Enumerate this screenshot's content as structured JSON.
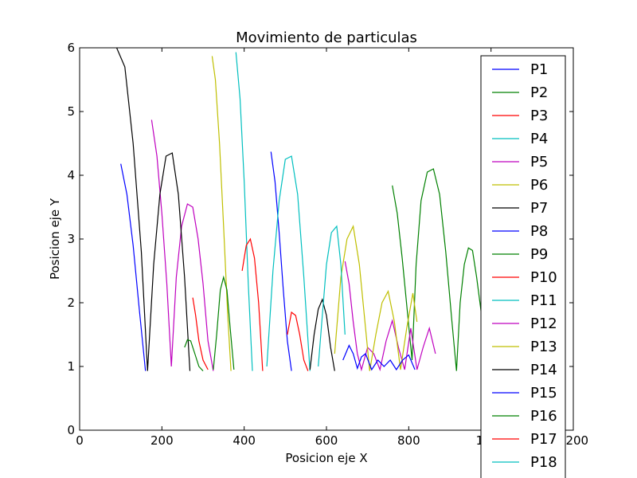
{
  "chart_data": {
    "type": "line",
    "title": "Movimiento de particulas",
    "xlabel": "Posicion eje X",
    "ylabel": "Posicion eje Y",
    "xlim": [
      0,
      1200
    ],
    "ylim": [
      0,
      6
    ],
    "xticks": [
      0,
      200,
      400,
      600,
      800,
      1000,
      1200
    ],
    "xtick_labels": [
      "0",
      "200",
      "400",
      "600",
      "800",
      "1000",
      "1200"
    ],
    "yticks": [
      0,
      1,
      2,
      3,
      4,
      5,
      6
    ],
    "ytick_labels": [
      "0",
      "1",
      "2",
      "3",
      "4",
      "5",
      "6"
    ],
    "grid": false,
    "legend_position": "upper right, extending below the plot area",
    "series": [
      {
        "name": "P1",
        "color": "#0000ff",
        "x": [
          100,
          115,
          130,
          145,
          160
        ],
        "y": [
          4.18,
          3.7,
          2.9,
          1.9,
          0.93
        ]
      },
      {
        "name": "P2",
        "color": "#008000",
        "x": [
          760,
          772,
          784,
          796,
          808,
          818,
          830,
          845,
          860,
          875,
          890,
          905,
          916,
          925,
          935,
          945,
          955,
          965,
          975,
          985,
          995
        ],
        "y": [
          3.84,
          3.4,
          2.7,
          1.9,
          1.1,
          2.6,
          3.6,
          4.05,
          4.1,
          3.7,
          2.8,
          1.7,
          0.93,
          2.0,
          2.6,
          2.86,
          2.82,
          2.4,
          1.9,
          1.3,
          0.95
        ]
      },
      {
        "name": "P3",
        "color": "#ff0000",
        "x": [
          275,
          282,
          290,
          300,
          312
        ],
        "y": [
          2.08,
          1.8,
          1.4,
          1.1,
          0.95
        ]
      },
      {
        "name": "P4",
        "color": "#00bfbf",
        "x": [
          380,
          390,
          400,
          410,
          420
        ],
        "y": [
          5.93,
          5.2,
          3.9,
          2.3,
          0.93
        ]
      },
      {
        "name": "P5",
        "color": "#bf00bf",
        "x": [
          175,
          188,
          200,
          212,
          223,
          235,
          248,
          262,
          275,
          288,
          300,
          312,
          325
        ],
        "y": [
          4.87,
          4.3,
          3.4,
          2.3,
          1.0,
          2.4,
          3.2,
          3.55,
          3.5,
          3.0,
          2.3,
          1.4,
          0.93
        ]
      },
      {
        "name": "P6",
        "color": "#bfbf00",
        "x": [
          322,
          330,
          340,
          350,
          360,
          368
        ],
        "y": [
          5.87,
          5.5,
          4.5,
          3.2,
          1.8,
          0.93
        ]
      },
      {
        "name": "P7",
        "color": "#000000",
        "x": [
          90,
          110,
          130,
          150,
          165,
          180,
          195,
          210,
          225,
          240,
          255,
          268
        ],
        "y": [
          6.0,
          5.7,
          4.5,
          2.8,
          0.93,
          2.6,
          3.7,
          4.3,
          4.35,
          3.7,
          2.4,
          0.93
        ]
      },
      {
        "name": "P8",
        "color": "#0000ff",
        "x": [
          465,
          475,
          485,
          495,
          505,
          515
        ],
        "y": [
          4.37,
          3.9,
          3.1,
          2.2,
          1.4,
          0.93
        ]
      },
      {
        "name": "P9",
        "color": "#008000",
        "x": [
          255,
          262,
          270,
          280,
          290,
          300
        ],
        "y": [
          1.3,
          1.42,
          1.4,
          1.2,
          1.0,
          0.93
        ]
      },
      {
        "name": "P10",
        "color": "#ff0000",
        "x": [
          395,
          405,
          415,
          425,
          435,
          445
        ],
        "y": [
          2.5,
          2.9,
          3.0,
          2.7,
          2.0,
          0.93
        ]
      },
      {
        "name": "P11",
        "color": "#00bfbf",
        "x": [
          455,
          470,
          485,
          500,
          515,
          530,
          545,
          560
        ],
        "y": [
          1.0,
          2.5,
          3.6,
          4.25,
          4.3,
          3.7,
          2.4,
          0.93
        ]
      },
      {
        "name": "P12",
        "color": "#bf00bf",
        "x": [
          645,
          655,
          665,
          675,
          685,
          700,
          715,
          730,
          745,
          760,
          775,
          790,
          805,
          820,
          835,
          850,
          865
        ],
        "y": [
          2.65,
          2.3,
          1.7,
          1.2,
          0.95,
          1.3,
          1.2,
          0.95,
          1.4,
          1.72,
          1.3,
          0.95,
          1.6,
          0.95,
          1.3,
          1.6,
          1.2
        ]
      },
      {
        "name": "P13",
        "color": "#bfbf00",
        "x": [
          620,
          635,
          650,
          665,
          680,
          695,
          705,
          720,
          735,
          750,
          765,
          780,
          795,
          810,
          820
        ],
        "y": [
          1.2,
          2.4,
          3.0,
          3.2,
          2.6,
          1.6,
          0.93,
          1.5,
          2.0,
          2.18,
          1.7,
          0.95,
          1.6,
          2.15,
          1.7
        ]
      },
      {
        "name": "P14",
        "color": "#000000",
        "x": [
          560,
          570,
          580,
          590,
          600,
          610,
          620
        ],
        "y": [
          0.95,
          1.5,
          1.9,
          2.05,
          1.8,
          1.3,
          0.93
        ]
      },
      {
        "name": "P15",
        "color": "#0000ff",
        "x": [
          640,
          655,
          665,
          675,
          685,
          695,
          710,
          725,
          740,
          755,
          770,
          785,
          800,
          815
        ],
        "y": [
          1.1,
          1.33,
          1.2,
          0.97,
          1.15,
          1.2,
          0.95,
          1.1,
          1.0,
          1.1,
          0.95,
          1.1,
          1.18,
          0.95
        ]
      },
      {
        "name": "P16",
        "color": "#008000",
        "x": [
          325,
          333,
          342,
          350,
          358,
          366,
          375
        ],
        "y": [
          0.95,
          1.5,
          2.2,
          2.4,
          2.2,
          1.6,
          0.95
        ]
      },
      {
        "name": "P17",
        "color": "#ff0000",
        "x": [
          505,
          515,
          525,
          535,
          545,
          555
        ],
        "y": [
          1.5,
          1.85,
          1.8,
          1.5,
          1.1,
          0.93
        ]
      },
      {
        "name": "P18",
        "color": "#00bfbf",
        "x": [
          580,
          590,
          600,
          612,
          625,
          635,
          645
        ],
        "y": [
          1.0,
          1.8,
          2.6,
          3.1,
          3.2,
          2.6,
          1.5
        ]
      }
    ]
  }
}
